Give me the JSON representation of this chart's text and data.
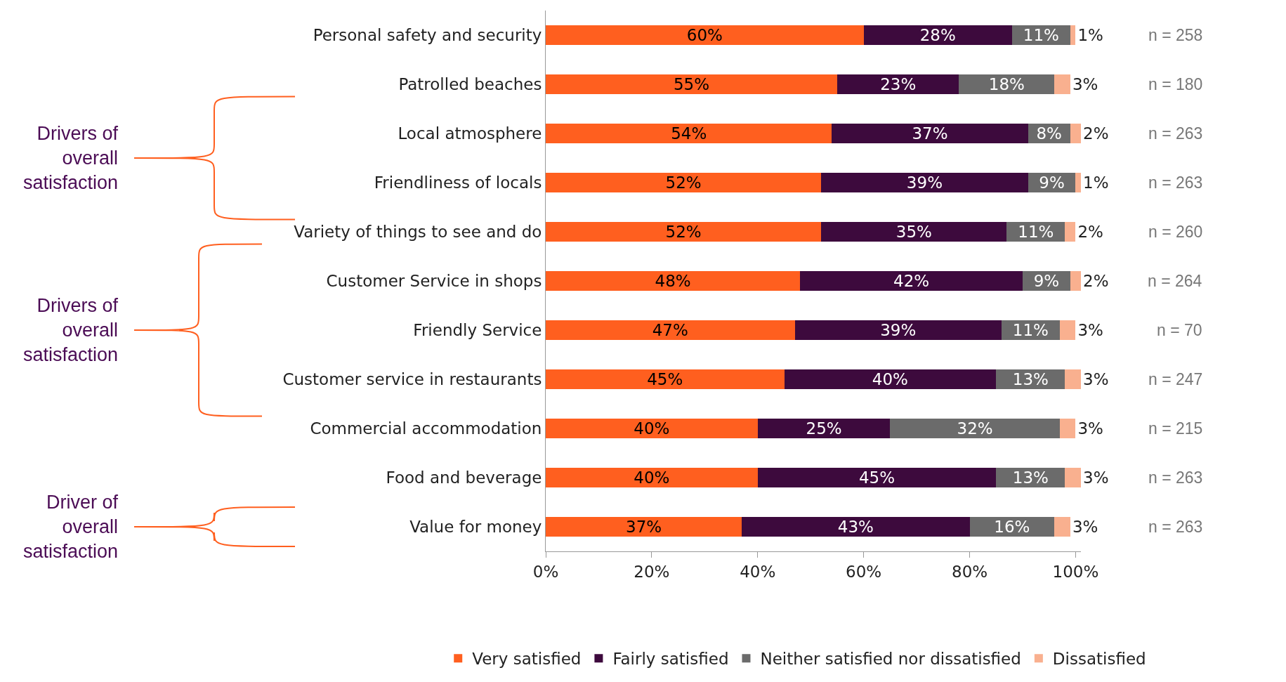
{
  "chart_data": {
    "type": "bar",
    "orientation": "horizontal",
    "stacked": true,
    "categories": [
      "Personal safety and security",
      "Patrolled beaches",
      "Local atmosphere",
      "Friendliness of locals",
      "Variety of things to see and do",
      "Customer Service in shops",
      "Friendly Service",
      "Customer service in restaurants",
      "Commercial accommodation",
      "Food and beverage",
      "Value for money"
    ],
    "series": [
      {
        "name": "Very satisfied",
        "color": "#ff5f1f",
        "values": [
          60,
          55,
          54,
          52,
          52,
          48,
          47,
          45,
          40,
          40,
          37
        ],
        "value_labels": [
          "60%",
          "55%",
          "54%",
          "52%",
          "52%",
          "48%",
          "47%",
          "45%",
          "40%",
          "40%",
          "37%"
        ]
      },
      {
        "name": "Fairly satisfied",
        "color": "#3d0a3d",
        "values": [
          28,
          23,
          37,
          39,
          35,
          42,
          39,
          40,
          25,
          45,
          43
        ],
        "value_labels": [
          "28%",
          "23%",
          "37%",
          "39%",
          "35%",
          "42%",
          "39%",
          "40%",
          "25%",
          "45%",
          "43%"
        ]
      },
      {
        "name": "Neither satisfied nor dissatisfied",
        "color": "#6b6b6b",
        "values": [
          11,
          18,
          8,
          9,
          11,
          9,
          11,
          13,
          32,
          13,
          16
        ],
        "value_labels": [
          "11%",
          "18%",
          "8%",
          "9%",
          "11%",
          "9%",
          "11%",
          "13%",
          "32%",
          "13%",
          "16%"
        ]
      },
      {
        "name": "Dissatisfied",
        "color": "#f9b08f",
        "values": [
          1,
          3,
          2,
          1,
          2,
          2,
          3,
          3,
          3,
          3,
          3
        ],
        "value_labels": [
          "1%",
          "3%",
          "2%",
          "1%",
          "2%",
          "2%",
          "3%",
          "3%",
          "3%",
          "3%",
          "3%"
        ]
      }
    ],
    "xlim": [
      0,
      101
    ],
    "xticks": [
      {
        "value": 0,
        "label": "0%"
      },
      {
        "value": 20,
        "label": "20%"
      },
      {
        "value": 40,
        "label": "40%"
      },
      {
        "value": 60,
        "label": "60%"
      },
      {
        "value": 80,
        "label": "80%"
      },
      {
        "value": 100,
        "label": "100%"
      }
    ],
    "grid": false,
    "legend": "bottom",
    "annotations": [
      "n = 258",
      "n = 180",
      "n = 263",
      "n = 263",
      "n = 260",
      "n = 264",
      "n = 70",
      "n = 247",
      "n = 215",
      "n = 263",
      "n = 263",
      "Drivers of overall satisfaction",
      "Drivers of overall satisfaction",
      "Driver of overall satisfaction"
    ]
  }
}
